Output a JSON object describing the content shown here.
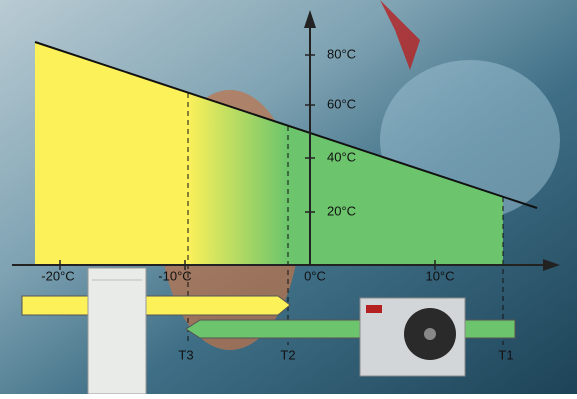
{
  "x_axis": {
    "labels": [
      "-20°C",
      "-10°C",
      "0°C",
      "10°C"
    ]
  },
  "y_axis": {
    "labels": [
      "20°C",
      "40°C",
      "60°C",
      "80°C"
    ]
  },
  "markers": [
    "T3",
    "T2",
    "T1"
  ]
}
